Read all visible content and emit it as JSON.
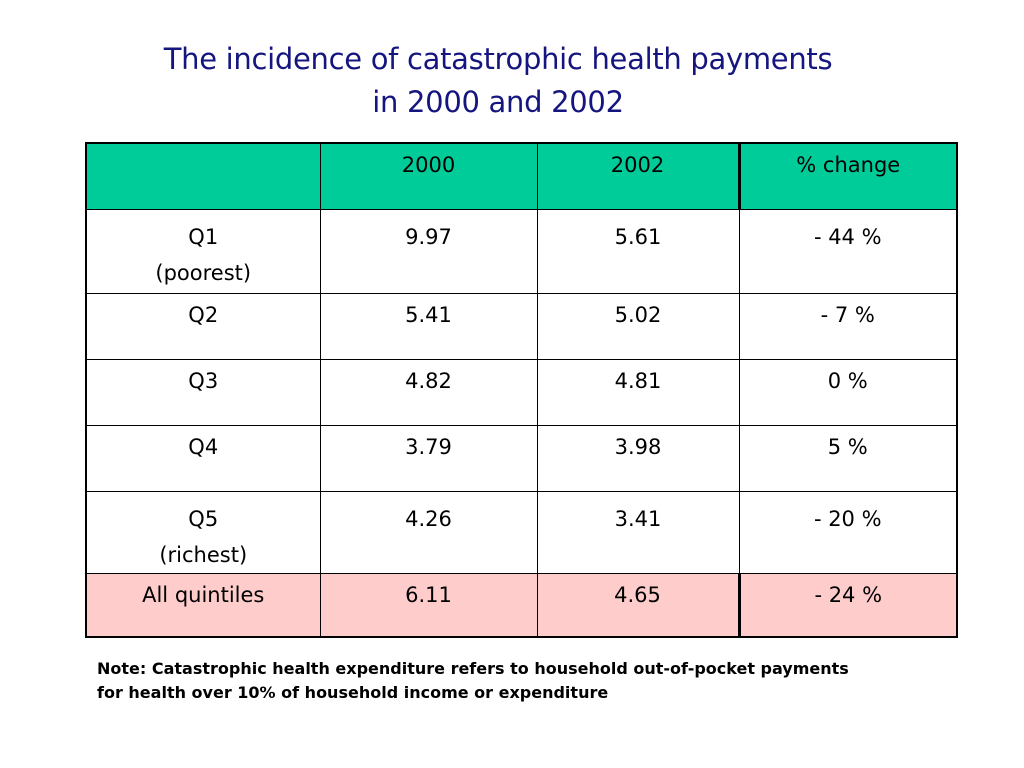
{
  "title": {
    "line1": "The incidence of catastrophic health payments",
    "line2": "in 2000 and 2002"
  },
  "table": {
    "headers": [
      "",
      "2000",
      "2002",
      "% change"
    ],
    "rows": [
      {
        "label": "Q1",
        "sublabel": "(poorest)",
        "v2000": "9.97",
        "v2002": "5.61",
        "change": "- 44 %"
      },
      {
        "label": "Q2",
        "sublabel": "",
        "v2000": "5.41",
        "v2002": "5.02",
        "change": "- 7 %"
      },
      {
        "label": "Q3",
        "sublabel": "",
        "v2000": "4.82",
        "v2002": "4.81",
        "change": "0 %"
      },
      {
        "label": "Q4",
        "sublabel": "",
        "v2000": "3.79",
        "v2002": "3.98",
        "change": "5 %"
      },
      {
        "label": "Q5",
        "sublabel": "(richest)",
        "v2000": "4.26",
        "v2002": "3.41",
        "change": "- 20 %"
      }
    ],
    "total": {
      "label": "All quintiles",
      "v2000": "6.11",
      "v2002": "4.65",
      "change": "- 24 %"
    }
  },
  "note": {
    "line1": "Note: Catastrophic health expenditure refers to household out-of-pocket payments",
    "line2": "for health over 10% of household income or expenditure"
  },
  "colors": {
    "title": "#15157f",
    "header_bg": "#00cc99",
    "total_bg": "#ffcccc"
  }
}
